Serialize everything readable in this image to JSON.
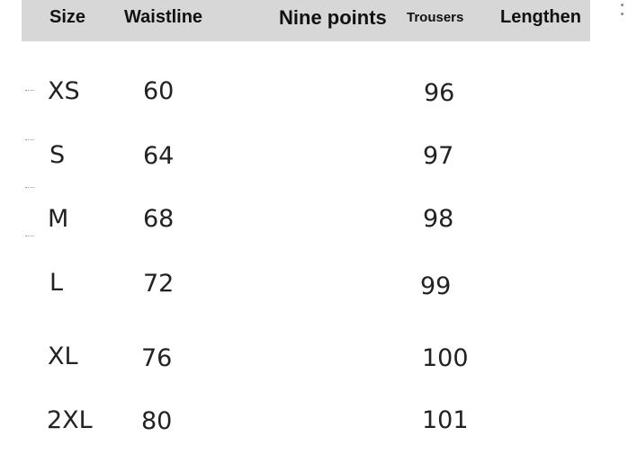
{
  "headers": [
    "Size",
    "Waistline",
    "Nine points",
    "Trousers",
    "Lengthen"
  ],
  "rows": [
    {
      "size": "XS",
      "waistline": "60",
      "length": "96"
    },
    {
      "size": "S",
      "waistline": "64",
      "length": "97"
    },
    {
      "size": "M",
      "waistline": "68",
      "length": "98"
    },
    {
      "size": "L",
      "waistline": "72",
      "length": "99"
    },
    {
      "size": "XL",
      "waistline": "76",
      "length": "100"
    },
    {
      "size": "2XL",
      "waistline": "80",
      "length": "101"
    }
  ],
  "colors": {
    "header_bg": "#d7d7d7"
  },
  "icons": [
    "more-vertical-icon"
  ]
}
